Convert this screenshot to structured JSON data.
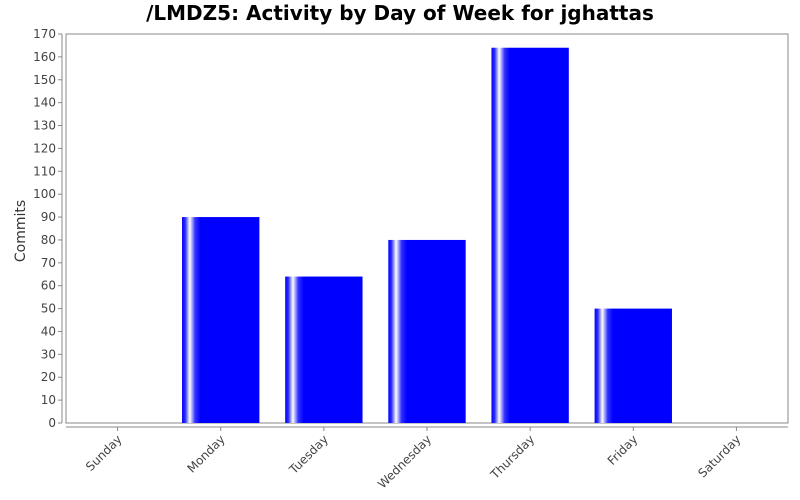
{
  "chart_data": {
    "type": "bar",
    "title": "/LMDZ5: Activity by Day of Week for jghattas",
    "xlabel": "",
    "ylabel": "Commits",
    "categories": [
      "Sunday",
      "Monday",
      "Tuesday",
      "Wednesday",
      "Thursday",
      "Friday",
      "Saturday"
    ],
    "values": [
      0,
      90,
      64,
      80,
      164,
      50,
      0
    ],
    "ylim": [
      0,
      170
    ],
    "yticks": [
      0,
      10,
      20,
      30,
      40,
      50,
      60,
      70,
      80,
      90,
      100,
      110,
      120,
      130,
      140,
      150,
      160,
      170
    ],
    "grid": false,
    "legend": "none",
    "colors": {
      "bar": "#0000ff",
      "bar_highlight": "#ffffff",
      "plot_border": "#888888",
      "axis": "#888888",
      "background": "#ffffff"
    }
  }
}
